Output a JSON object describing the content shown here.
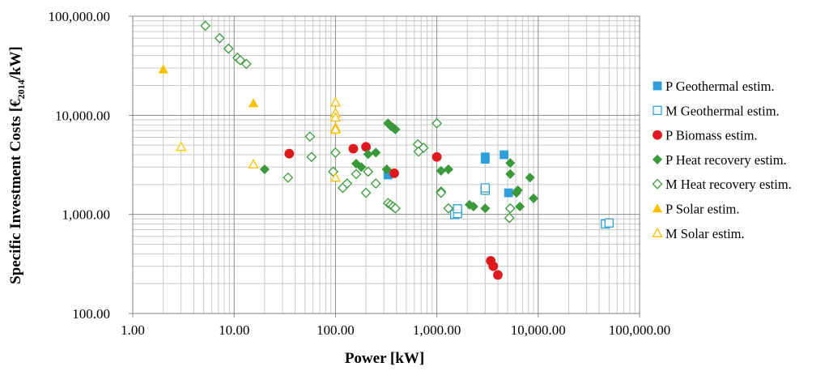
{
  "chart_data": {
    "type": "scatter",
    "xlabel": "Power [kW]",
    "ylabel": {
      "main": "Specific Investment Costs [€",
      "sub": "2014",
      "tail": "/kW]"
    },
    "xscale": "log",
    "yscale": "log",
    "xlim": [
      1,
      100000
    ],
    "ylim": [
      100,
      100000
    ],
    "xticks": [
      "1.00",
      "10.00",
      "100.00",
      "1,000.00",
      "10,000.00",
      "100,000.00"
    ],
    "yticks": [
      "100.00",
      "1,000.00",
      "10,000.00",
      "100,000.00"
    ],
    "grid": true,
    "legend_position": "right",
    "series": [
      {
        "name": "P Geothermal estim.",
        "marker": "square",
        "filled": true,
        "color": "#2e9fd8",
        "points": [
          [
            330,
            2500
          ],
          [
            3000,
            3800
          ],
          [
            3000,
            3600
          ],
          [
            4600,
            4000
          ],
          [
            5100,
            1650
          ]
        ]
      },
      {
        "name": "M Geothermal estim.",
        "marker": "square",
        "filled": false,
        "color": "#2e9fd8",
        "points": [
          [
            1500,
            1000
          ],
          [
            1600,
            1020
          ],
          [
            1600,
            1140
          ],
          [
            3000,
            1750
          ],
          [
            3000,
            1850
          ],
          [
            46000,
            800
          ],
          [
            50000,
            820
          ]
        ]
      },
      {
        "name": "P Biomass estim.",
        "marker": "circle",
        "filled": true,
        "color": "#e0191e",
        "points": [
          [
            35,
            4100
          ],
          [
            150,
            4600
          ],
          [
            200,
            4800
          ],
          [
            380,
            2600
          ],
          [
            1000,
            3800
          ],
          [
            3400,
            340
          ],
          [
            3600,
            300
          ],
          [
            4000,
            245
          ]
        ]
      },
      {
        "name": "P Heat recovery estim.",
        "marker": "diamond",
        "filled": true,
        "color": "#3a9a3a",
        "points": [
          [
            20,
            2850
          ],
          [
            160,
            3250
          ],
          [
            180,
            3000
          ],
          [
            210,
            4050
          ],
          [
            250,
            4200
          ],
          [
            320,
            2850
          ],
          [
            330,
            8300
          ],
          [
            350,
            7800
          ],
          [
            370,
            7500
          ],
          [
            390,
            7200
          ],
          [
            1100,
            2750
          ],
          [
            1300,
            2850
          ],
          [
            2100,
            1250
          ],
          [
            2300,
            1200
          ],
          [
            3000,
            1150
          ],
          [
            5300,
            3300
          ],
          [
            5300,
            2550
          ],
          [
            6100,
            1650
          ],
          [
            6300,
            1750
          ],
          [
            6600,
            1200
          ],
          [
            8300,
            2350
          ],
          [
            9000,
            1450
          ]
        ]
      },
      {
        "name": "M Heat recovery estim.",
        "marker": "diamond",
        "filled": false,
        "color": "#3a9a3a",
        "points": [
          [
            5.2,
            80000
          ],
          [
            7.2,
            60000
          ],
          [
            8.8,
            47000
          ],
          [
            10.8,
            38000
          ],
          [
            11.5,
            36000
          ],
          [
            13.2,
            33000
          ],
          [
            34,
            2350
          ],
          [
            56,
            6100
          ],
          [
            58,
            3800
          ],
          [
            95,
            2700
          ],
          [
            100,
            4200
          ],
          [
            118,
            1850
          ],
          [
            130,
            2050
          ],
          [
            160,
            2550
          ],
          [
            200,
            1650
          ],
          [
            210,
            2700
          ],
          [
            250,
            2050
          ],
          [
            330,
            1300
          ],
          [
            350,
            1250
          ],
          [
            370,
            1200
          ],
          [
            390,
            1150
          ],
          [
            650,
            5100
          ],
          [
            660,
            4300
          ],
          [
            740,
            4700
          ],
          [
            1000,
            8300
          ],
          [
            1100,
            1700
          ],
          [
            1100,
            1650
          ],
          [
            1300,
            1150
          ],
          [
            5200,
            920
          ],
          [
            5300,
            1150
          ]
        ]
      },
      {
        "name": "P Solar estim.",
        "marker": "triangle",
        "filled": true,
        "color": "#ffc000",
        "points": [
          [
            2,
            29000
          ],
          [
            15.5,
            13200
          ]
        ]
      },
      {
        "name": "M Solar estim.",
        "marker": "triangle",
        "filled": false,
        "color": "#ffc000",
        "points": [
          [
            3,
            4800
          ],
          [
            15.5,
            3200
          ],
          [
            100,
            13500
          ],
          [
            100,
            10500
          ],
          [
            100,
            9500
          ],
          [
            100,
            7500
          ],
          [
            100,
            7200
          ],
          [
            100,
            2350
          ]
        ]
      }
    ]
  }
}
